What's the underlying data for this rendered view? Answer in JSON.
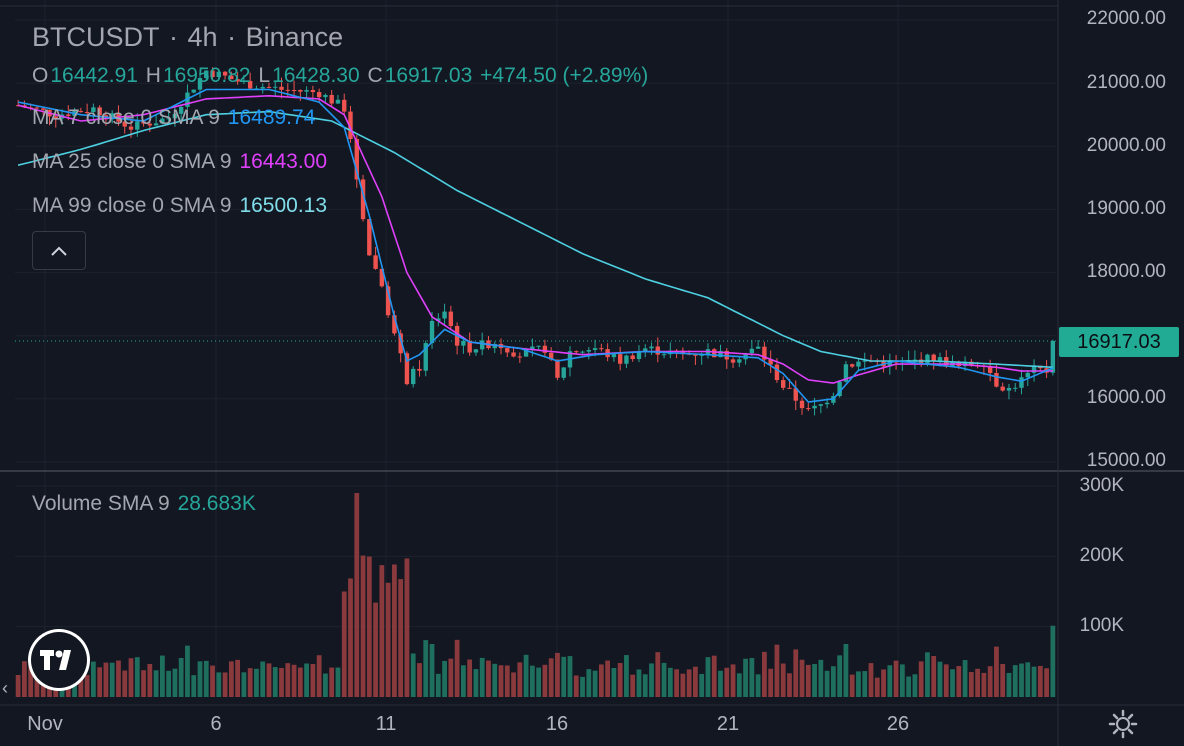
{
  "header": {
    "symbol": "BTCUSDT",
    "sep1": "·",
    "interval": "4h",
    "sep2": "·",
    "exchange": "Binance"
  },
  "ohlc": {
    "o_label": "O",
    "o_value": "16442.91",
    "h_label": "H",
    "h_value": "16950.82",
    "l_label": "L",
    "l_value": "16428.30",
    "c_label": "C",
    "c_value": "16917.03",
    "change": "+474.50 (+2.89%)"
  },
  "indicators": [
    {
      "label": "MA 7 close 0 SMA 9",
      "value": "16489.74",
      "color": "#2196f3"
    },
    {
      "label": "MA 25 close 0 SMA 9",
      "value": "16443.00",
      "color": "#e040fb"
    },
    {
      "label": "MA 99 close 0 SMA 9",
      "value": "16500.13",
      "color": "#4dd0e1"
    }
  ],
  "volume_indicator": {
    "label": "Volume SMA 9",
    "value": "28.683K"
  },
  "last_price": "16917.03",
  "price_axis": [
    "22000.00",
    "21000.00",
    "20000.00",
    "19000.00",
    "18000.00",
    "17000.00",
    "16000.00",
    "15000.00"
  ],
  "volume_axis": [
    "300K",
    "200K",
    "100K"
  ],
  "time_axis": [
    "Nov",
    "6",
    "11",
    "16",
    "21",
    "26"
  ],
  "colors": {
    "background": "#131722",
    "up": "#26a69a",
    "down": "#ef5350",
    "ma7": "#2196f3",
    "ma25": "#e040fb",
    "ma99": "#4dd0e1",
    "last_price_bg": "#22ab94"
  },
  "icons": {
    "collapse": "chevron-up-icon",
    "logo": "tradingview-logo",
    "settings": "gear-icon",
    "scroll": "chevron-left-icon"
  },
  "chart_data": {
    "type": "candlestick",
    "interval": "4h",
    "ylim": [
      15000,
      22000
    ],
    "volume_ylim": [
      0,
      300000
    ],
    "x": [
      "Nov",
      "6",
      "11",
      "16",
      "21",
      "26"
    ],
    "close_path": [
      [
        0,
        20650
      ],
      [
        6,
        20500
      ],
      [
        12,
        20600
      ],
      [
        18,
        20300
      ],
      [
        24,
        20450
      ],
      [
        30,
        21200
      ],
      [
        36,
        21000
      ],
      [
        42,
        20900
      ],
      [
        48,
        20850
      ],
      [
        52,
        20600
      ],
      [
        54,
        19500
      ],
      [
        56,
        18300
      ],
      [
        58,
        17800
      ],
      [
        60,
        17000
      ],
      [
        62,
        16300
      ],
      [
        64,
        16500
      ],
      [
        66,
        17200
      ],
      [
        68,
        17400
      ],
      [
        70,
        16900
      ],
      [
        72,
        16800
      ],
      [
        76,
        16900
      ],
      [
        80,
        16700
      ],
      [
        84,
        16800
      ],
      [
        86,
        16300
      ],
      [
        88,
        16750
      ],
      [
        92,
        16800
      ],
      [
        96,
        16600
      ],
      [
        100,
        16800
      ],
      [
        106,
        16700
      ],
      [
        110,
        16750
      ],
      [
        114,
        16650
      ],
      [
        118,
        16800
      ],
      [
        122,
        16200
      ],
      [
        124,
        16000
      ],
      [
        126,
        15800
      ],
      [
        128,
        15900
      ],
      [
        130,
        16100
      ],
      [
        132,
        16550
      ],
      [
        136,
        16600
      ],
      [
        140,
        16550
      ],
      [
        146,
        16650
      ],
      [
        150,
        16500
      ],
      [
        154,
        16600
      ],
      [
        156,
        16250
      ],
      [
        158,
        16150
      ],
      [
        160,
        16300
      ],
      [
        162,
        16450
      ],
      [
        164,
        16440
      ],
      [
        165,
        16917
      ]
    ],
    "ma7_path": [
      [
        0,
        20700
      ],
      [
        10,
        20500
      ],
      [
        20,
        20400
      ],
      [
        30,
        20900
      ],
      [
        40,
        20900
      ],
      [
        48,
        20700
      ],
      [
        52,
        20300
      ],
      [
        56,
        18900
      ],
      [
        60,
        17300
      ],
      [
        62,
        16600
      ],
      [
        64,
        16700
      ],
      [
        68,
        17100
      ],
      [
        72,
        16900
      ],
      [
        80,
        16800
      ],
      [
        86,
        16600
      ],
      [
        92,
        16700
      ],
      [
        100,
        16750
      ],
      [
        110,
        16700
      ],
      [
        118,
        16650
      ],
      [
        122,
        16400
      ],
      [
        126,
        15950
      ],
      [
        130,
        16000
      ],
      [
        134,
        16450
      ],
      [
        140,
        16600
      ],
      [
        150,
        16500
      ],
      [
        156,
        16350
      ],
      [
        160,
        16280
      ],
      [
        165,
        16490
      ]
    ],
    "ma25_path": [
      [
        0,
        20650
      ],
      [
        10,
        20400
      ],
      [
        20,
        20500
      ],
      [
        30,
        20750
      ],
      [
        40,
        20800
      ],
      [
        48,
        20750
      ],
      [
        52,
        20500
      ],
      [
        58,
        19200
      ],
      [
        62,
        18000
      ],
      [
        66,
        17300
      ],
      [
        72,
        16900
      ],
      [
        80,
        16800
      ],
      [
        90,
        16700
      ],
      [
        100,
        16750
      ],
      [
        110,
        16750
      ],
      [
        118,
        16700
      ],
      [
        122,
        16550
      ],
      [
        126,
        16300
      ],
      [
        130,
        16250
      ],
      [
        134,
        16380
      ],
      [
        140,
        16550
      ],
      [
        150,
        16550
      ],
      [
        156,
        16500
      ],
      [
        160,
        16440
      ],
      [
        165,
        16443
      ]
    ],
    "ma99_path": [
      [
        0,
        19700
      ],
      [
        10,
        19950
      ],
      [
        20,
        20250
      ],
      [
        30,
        20500
      ],
      [
        40,
        20550
      ],
      [
        50,
        20400
      ],
      [
        60,
        19900
      ],
      [
        70,
        19300
      ],
      [
        80,
        18800
      ],
      [
        90,
        18300
      ],
      [
        100,
        17900
      ],
      [
        110,
        17600
      ],
      [
        116,
        17300
      ],
      [
        122,
        17000
      ],
      [
        128,
        16750
      ],
      [
        136,
        16600
      ],
      [
        146,
        16600
      ],
      [
        156,
        16550
      ],
      [
        165,
        16500
      ]
    ],
    "volume_seed_note_removed": true
  }
}
